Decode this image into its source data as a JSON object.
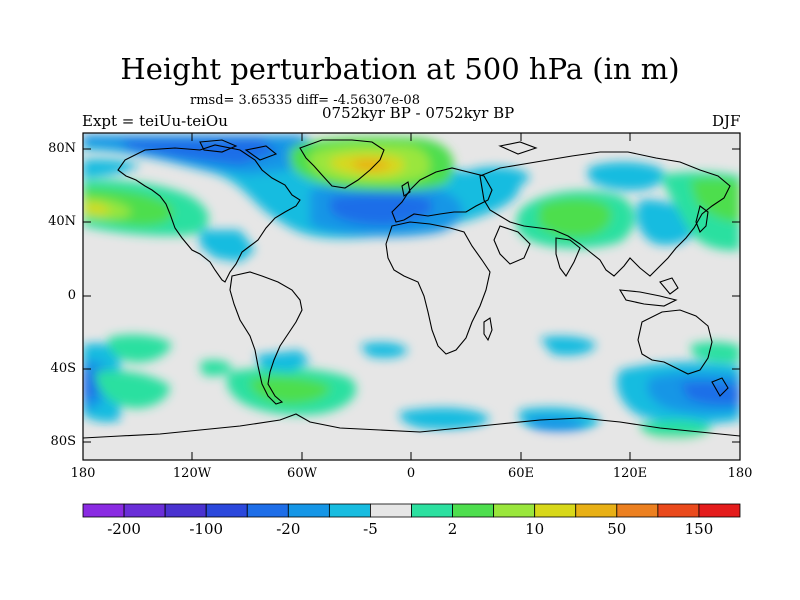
{
  "title": "Height perturbation at 500 hPa (in m)",
  "rmsd_text": "rmsd= 3.65335 diff= -4.56307e-08",
  "experiment": "Expt = teiUu-teiOu",
  "period": "0752kyr BP - 0752kyr BP",
  "season": "DJF",
  "map": {
    "lat_labels": [
      "80N",
      "40N",
      "0",
      "40S",
      "80S"
    ],
    "lon_labels": [
      "180",
      "120W",
      "60W",
      "0",
      "60E",
      "120E",
      "180"
    ]
  },
  "colorbar": {
    "colors": [
      "#8a2be2",
      "#6a2ed8",
      "#4a32d0",
      "#2b48dc",
      "#1e6ee8",
      "#1596e6",
      "#18bce0",
      "#e6e6e6",
      "#2ce0a0",
      "#4ede4e",
      "#9ae63c",
      "#d8d81a",
      "#e8b016",
      "#ec8020",
      "#ea4a1c",
      "#e41c1c"
    ],
    "labels": [
      "-200",
      "-100",
      "-20",
      "-5",
      "2",
      "10",
      "50",
      "150"
    ]
  }
}
